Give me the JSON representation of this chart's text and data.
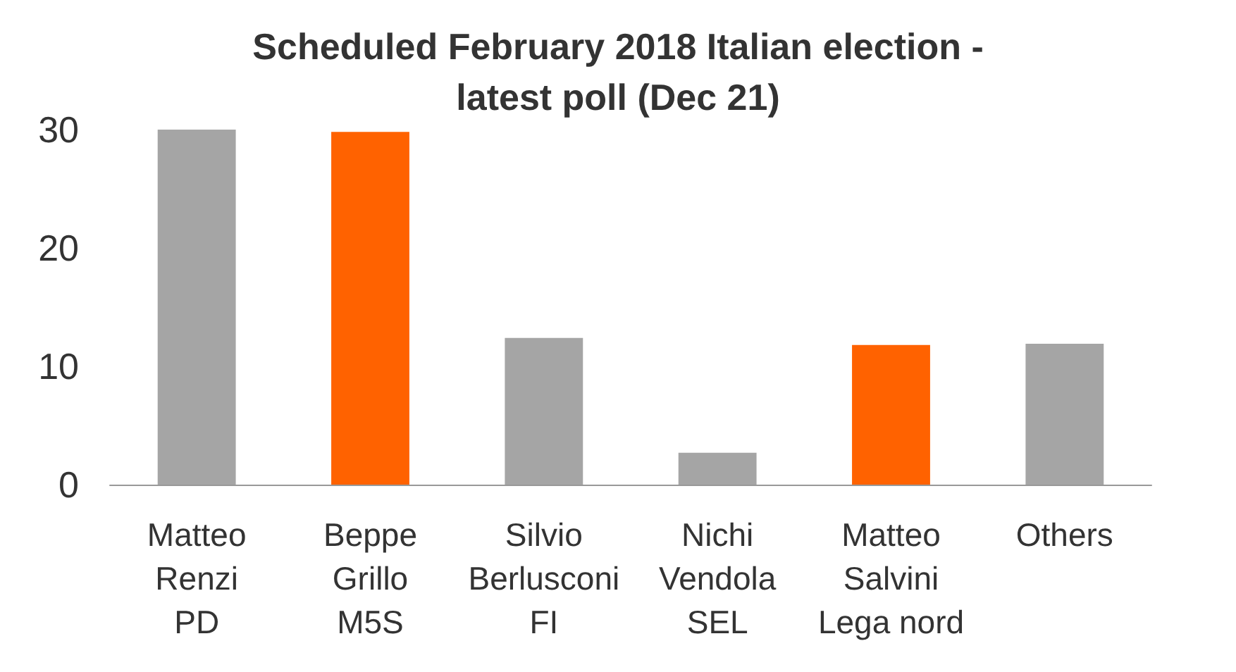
{
  "chart_data": {
    "type": "bar",
    "title": "Scheduled February 2018 Italian election -\nlatest poll (Dec 21)",
    "categories": [
      "Matteo\nRenzi\nPD",
      "Beppe\nGrillo\nM5S",
      "Silvio\nBerlusconi\nFI",
      "Nichi\nVendola\nSEL",
      "Matteo\nSalvini\nLega nord",
      "Others"
    ],
    "values": [
      30.0,
      29.8,
      12.4,
      2.7,
      11.8,
      11.9
    ],
    "colors": [
      "#a5a5a5",
      "#ff6200",
      "#a5a5a5",
      "#a5a5a5",
      "#ff6200",
      "#a5a5a5"
    ],
    "ylim": [
      0,
      30
    ],
    "yticks": [
      0,
      10,
      20,
      30
    ],
    "grid": false
  }
}
